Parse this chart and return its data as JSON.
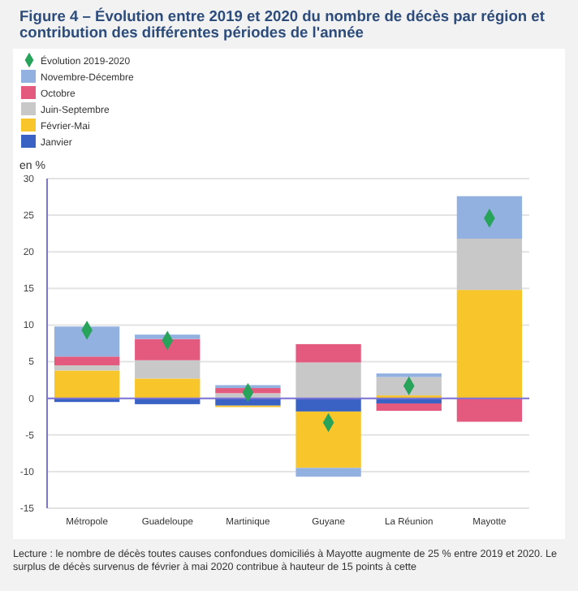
{
  "chart_data": {
    "type": "bar",
    "stacked": true,
    "title": "Figure 4 – Évolution entre 2019 et 2020 du nombre de décès par région et contribution des différentes périodes de l'année",
    "ylabel": "en %",
    "categories": [
      "Métropole",
      "Guadeloupe",
      "Martinique",
      "Guyane",
      "La Réunion",
      "Mayotte"
    ],
    "series": [
      {
        "name": "Janvier",
        "color": "#3a62c5",
        "values": [
          -0.5,
          -0.8,
          -1.0,
          -1.8,
          -0.7,
          0
        ]
      },
      {
        "name": "Février-Mai",
        "color": "#f8c52a",
        "values": [
          3.8,
          2.7,
          -0.2,
          -7.7,
          0.4,
          14.8
        ]
      },
      {
        "name": "Juin-Septembre",
        "color": "#c8c8c8",
        "values": [
          0.7,
          2.5,
          0.7,
          4.9,
          2.5,
          7.0
        ]
      },
      {
        "name": "Octobre",
        "color": "#e45a7f",
        "values": [
          1.2,
          2.9,
          0.7,
          2.5,
          -1.0,
          -3.2
        ]
      },
      {
        "name": "Novembre-Décembre",
        "color": "#92b0e0",
        "values": [
          4.1,
          0.6,
          0.4,
          -1.2,
          0.5,
          5.8
        ]
      },
      {
        "name": "Évolution 2019-2020",
        "type": "scatter",
        "marker": "diamond",
        "color": "#27a35a",
        "values": [
          9.3,
          7.9,
          0.8,
          -3.3,
          1.7,
          24.6
        ]
      }
    ],
    "ylim": [
      -15,
      30
    ],
    "yticks": [
      -15,
      -10,
      -5,
      0,
      5,
      10,
      15,
      20,
      25,
      30
    ],
    "grid": "y",
    "legend": "top left",
    "ref_lines": [
      {
        "axis": "y",
        "value": 0,
        "color": "#7c74d6"
      }
    ],
    "annotations": [
      "Lecture : le nombre de décès toutes causes confondues domiciliés à Mayotte augmente de 25 % entre 2019 et 2020. Le surplus de décès survenus de février à mai 2020 contribue à hauteur de 15 points à cette"
    ]
  }
}
